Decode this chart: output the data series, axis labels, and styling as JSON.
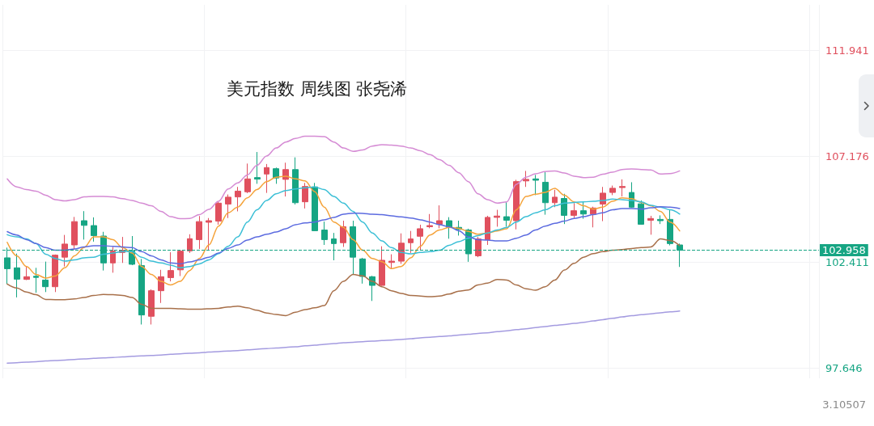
{
  "chart_data": {
    "type": "candlestick",
    "title": "美元指数 周线图 张尧浠",
    "categories": [
      null,
      null,
      null,
      null,
      null,
      null,
      null,
      null,
      null,
      null,
      null,
      null,
      null,
      null,
      null,
      null,
      null,
      null,
      null,
      null,
      null,
      null,
      null,
      null,
      null,
      null,
      null,
      null,
      null,
      null,
      null,
      null,
      null,
      null,
      null,
      null,
      null,
      null,
      null,
      null,
      null,
      null,
      null,
      null,
      null,
      null,
      null,
      null,
      null,
      null,
      null,
      null,
      null,
      null,
      null,
      null,
      null,
      null,
      null,
      null,
      null,
      null,
      null,
      null,
      null,
      null,
      null,
      null,
      null,
      null,
      null
    ],
    "ohlc": [
      [
        102.62,
        103.08,
        101.44,
        102.13
      ],
      [
        102.17,
        102.81,
        100.84,
        101.66
      ],
      [
        101.65,
        102.23,
        101.62,
        101.77
      ],
      [
        101.79,
        102.17,
        101.05,
        101.74
      ],
      [
        101.62,
        102.45,
        101.08,
        101.32
      ],
      [
        101.32,
        102.77,
        101.08,
        102.74
      ],
      [
        102.65,
        103.65,
        102.23,
        103.24
      ],
      [
        103.2,
        104.46,
        102.99,
        104.25
      ],
      [
        104.29,
        104.72,
        103.44,
        104.08
      ],
      [
        104.07,
        104.44,
        103.35,
        103.62
      ],
      [
        103.6,
        103.79,
        102.05,
        102.39
      ],
      [
        102.39,
        103.11,
        101.95,
        102.92
      ],
      [
        102.86,
        103.56,
        102.39,
        102.96
      ],
      [
        102.93,
        103.6,
        102.29,
        102.33
      ],
      [
        102.27,
        102.57,
        99.62,
        100.05
      ],
      [
        99.99,
        101.2,
        99.62,
        101.14
      ],
      [
        101.14,
        102.08,
        100.59,
        101.77
      ],
      [
        101.73,
        102.87,
        101.56,
        102.05
      ],
      [
        102.08,
        102.96,
        101.8,
        102.92
      ],
      [
        102.93,
        103.68,
        102.84,
        103.48
      ],
      [
        103.44,
        104.5,
        103.02,
        104.25
      ],
      [
        104.22,
        104.41,
        102.98,
        104.29
      ],
      [
        104.27,
        105.16,
        104.11,
        105.08
      ],
      [
        105.04,
        105.47,
        104.41,
        105.35
      ],
      [
        105.36,
        105.81,
        104.71,
        105.62
      ],
      [
        105.59,
        106.86,
        105.53,
        106.17
      ],
      [
        106.23,
        107.38,
        105.95,
        106.16
      ],
      [
        106.39,
        106.84,
        105.54,
        106.68
      ],
      [
        106.63,
        106.68,
        105.95,
        106.21
      ],
      [
        106.15,
        106.9,
        105.38,
        106.59
      ],
      [
        106.59,
        107.14,
        105.02,
        105.1
      ],
      [
        105.14,
        105.99,
        104.84,
        105.83
      ],
      [
        105.81,
        105.99,
        103.83,
        103.84
      ],
      [
        103.87,
        104.25,
        103.2,
        103.44
      ],
      [
        103.47,
        103.74,
        102.51,
        103.26
      ],
      [
        103.3,
        104.29,
        103.11,
        104.02
      ],
      [
        104.02,
        104.29,
        101.87,
        102.65
      ],
      [
        102.57,
        102.62,
        101.46,
        101.78
      ],
      [
        101.77,
        101.81,
        100.68,
        101.38
      ],
      [
        101.38,
        103.14,
        101.36,
        102.51
      ],
      [
        102.41,
        102.78,
        102.11,
        102.47
      ],
      [
        102.47,
        103.72,
        102.35,
        103.28
      ],
      [
        103.3,
        103.83,
        102.84,
        103.47
      ],
      [
        103.59,
        104.11,
        102.96,
        103.93
      ],
      [
        104.02,
        104.59,
        103.95,
        104.07
      ],
      [
        104.13,
        104.98,
        103.95,
        104.29
      ],
      [
        104.29,
        104.45,
        103.48,
        103.99
      ],
      [
        103.99,
        104.29,
        103.62,
        103.9
      ],
      [
        103.87,
        103.93,
        102.44,
        102.8
      ],
      [
        102.71,
        103.56,
        102.65,
        103.47
      ],
      [
        103.44,
        104.51,
        103.2,
        104.44
      ],
      [
        104.44,
        104.78,
        104.02,
        104.5
      ],
      [
        104.47,
        105.12,
        104.02,
        104.31
      ],
      [
        104.29,
        106.13,
        103.9,
        106.05
      ],
      [
        106.08,
        106.53,
        105.81,
        106.15
      ],
      [
        106.17,
        106.35,
        105.44,
        106.11
      ],
      [
        106.02,
        106.47,
        104.56,
        105.1
      ],
      [
        105.1,
        105.68,
        104.9,
        105.35
      ],
      [
        105.29,
        105.5,
        104.14,
        104.53
      ],
      [
        104.53,
        105.08,
        104.41,
        104.74
      ],
      [
        104.74,
        105.16,
        104.38,
        104.59
      ],
      [
        104.59,
        104.92,
        103.99,
        104.86
      ],
      [
        105.04,
        105.81,
        104.27,
        105.53
      ],
      [
        105.56,
        105.87,
        105.44,
        105.75
      ],
      [
        105.78,
        106.15,
        105.38,
        105.83
      ],
      [
        105.56,
        106.02,
        104.87,
        104.9
      ],
      [
        105.05,
        105.2,
        104.11,
        104.13
      ],
      [
        104.31,
        104.51,
        103.66,
        104.39
      ],
      [
        104.35,
        104.53,
        104.14,
        104.29
      ],
      [
        104.35,
        104.8,
        103.18,
        103.26
      ],
      [
        103.2,
        103.26,
        102.21,
        102.958
      ]
    ],
    "colors": [
      "#16a583",
      "#16a583",
      "#e0505e",
      "#16a583",
      "#16a583",
      "#e0505e",
      "#e0505e",
      "#e0505e",
      "#16a583",
      "#16a583",
      "#16a583",
      "#e0505e",
      "#e0505e",
      "#16a583",
      "#16a583",
      "#e0505e",
      "#e0505e",
      "#e0505e",
      "#e0505e",
      "#e0505e",
      "#e0505e",
      "#e0505e",
      "#e0505e",
      "#e0505e",
      "#e0505e",
      "#e0505e",
      "#16a583",
      "#e0505e",
      "#16a583",
      "#e0505e",
      "#16a583",
      "#e0505e",
      "#16a583",
      "#16a583",
      "#16a583",
      "#e0505e",
      "#16a583",
      "#16a583",
      "#16a583",
      "#e0505e",
      "#e0505e",
      "#e0505e",
      "#e0505e",
      "#e0505e",
      "#e0505e",
      "#e0505e",
      "#16a583",
      "#16a583",
      "#16a583",
      "#e0505e",
      "#e0505e",
      "#e0505e",
      "#16a583",
      "#e0505e",
      "#e0505e",
      "#16a583",
      "#16a583",
      "#e0505e",
      "#16a583",
      "#e0505e",
      "#16a583",
      "#e0505e",
      "#e0505e",
      "#e0505e",
      "#e0505e",
      "#16a583",
      "#16a583",
      "#e0505e",
      "#16a583",
      "#16a583",
      "#16a583"
    ],
    "series": [
      {
        "type": "line",
        "color": "#f5a33b",
        "values": [
          103.32,
          102.71,
          102.23,
          101.87,
          101.71,
          101.8,
          102.17,
          102.71,
          103.08,
          103.56,
          103.56,
          103.44,
          103.08,
          102.84,
          102.23,
          101.87,
          101.56,
          101.4,
          101.56,
          102.05,
          102.59,
          103.2,
          104.05,
          104.65,
          104.9,
          105.32,
          105.69,
          106.05,
          106.25,
          106.29,
          106.17,
          106.08,
          105.6,
          104.9,
          104.23,
          103.99,
          103.44,
          102.96,
          102.59,
          102.45,
          102.14,
          102.23,
          102.62,
          103.14,
          103.65,
          103.87,
          103.99,
          103.95,
          103.81,
          103.68,
          103.74,
          103.83,
          103.93,
          104.78,
          105.38,
          105.48,
          105.56,
          105.75,
          105.44,
          105.14,
          104.96,
          104.81,
          104.9,
          105.16,
          105.32,
          105.28,
          105.11,
          104.96,
          104.71,
          104.23,
          103.83
        ]
      },
      {
        "type": "line",
        "color": "#3bbfd6",
        "values": [
          103.66,
          103.56,
          103.47,
          103.26,
          102.78,
          102.59,
          102.47,
          102.53,
          102.62,
          102.65,
          102.78,
          102.84,
          102.9,
          102.9,
          102.65,
          102.47,
          102.39,
          102.29,
          102.17,
          102.23,
          102.35,
          102.53,
          102.81,
          103.14,
          103.56,
          104.23,
          104.78,
          105.2,
          105.5,
          105.65,
          105.72,
          105.77,
          105.81,
          105.69,
          105.38,
          105.08,
          104.71,
          104.23,
          103.74,
          103.38,
          103.08,
          102.86,
          102.8,
          102.86,
          102.9,
          102.96,
          103.18,
          103.35,
          103.5,
          103.62,
          103.74,
          103.87,
          103.99,
          104.23,
          104.47,
          104.65,
          104.78,
          104.96,
          105.08,
          105.11,
          105.14,
          105.16,
          105.2,
          105.26,
          105.24,
          105.2,
          105.14,
          104.98,
          104.9,
          104.78,
          104.59
        ]
      },
      {
        "type": "line",
        "color": "#5c6be0",
        "values": [
          103.8,
          103.65,
          103.44,
          103.26,
          103.08,
          102.96,
          102.96,
          103.02,
          103.11,
          103.16,
          103.16,
          103.14,
          103.11,
          103.08,
          102.9,
          102.71,
          102.53,
          102.39,
          102.35,
          102.44,
          102.53,
          102.65,
          102.84,
          103.05,
          103.2,
          103.42,
          103.56,
          103.68,
          103.78,
          103.93,
          104.11,
          104.19,
          104.23,
          104.33,
          104.44,
          104.58,
          104.63,
          104.62,
          104.58,
          104.56,
          104.51,
          104.46,
          104.41,
          104.33,
          104.23,
          104.11,
          104.02,
          103.84,
          103.56,
          103.44,
          103.42,
          103.38,
          103.38,
          103.5,
          103.65,
          103.87,
          104.05,
          104.17,
          104.27,
          104.39,
          104.47,
          104.56,
          104.65,
          104.78,
          104.84,
          104.84,
          104.81,
          104.87,
          104.92,
          104.9,
          104.84
        ]
      },
      {
        "type": "line",
        "color": "#d58bd4",
        "values": [
          106.17,
          105.81,
          105.69,
          105.62,
          105.44,
          105.24,
          105.18,
          105.24,
          105.36,
          105.38,
          105.38,
          105.36,
          105.28,
          105.2,
          105.08,
          104.96,
          104.71,
          104.47,
          104.38,
          104.39,
          104.56,
          104.8,
          105.16,
          105.72,
          105.99,
          106.35,
          106.78,
          107.2,
          107.56,
          107.83,
          107.99,
          108.09,
          108.09,
          108.07,
          107.83,
          107.56,
          107.41,
          107.47,
          107.65,
          107.71,
          107.69,
          107.65,
          107.56,
          107.44,
          107.26,
          107.04,
          106.78,
          106.45,
          106.05,
          105.5,
          105.24,
          105.08,
          105.14,
          105.93,
          106.25,
          106.4,
          106.5,
          106.53,
          106.44,
          106.29,
          106.23,
          106.25,
          106.38,
          106.47,
          106.59,
          106.62,
          106.59,
          106.57,
          106.39,
          106.41,
          106.53
        ]
      },
      {
        "type": "line",
        "color": "#a8704a",
        "values": [
          101.44,
          101.26,
          101.08,
          100.96,
          100.75,
          100.74,
          100.74,
          100.77,
          100.84,
          100.93,
          100.97,
          100.96,
          100.93,
          100.84,
          100.53,
          100.35,
          100.35,
          100.35,
          100.33,
          100.31,
          100.31,
          100.33,
          100.35,
          100.41,
          100.45,
          100.37,
          100.26,
          100.14,
          100.07,
          100.02,
          100.17,
          100.29,
          100.37,
          100.47,
          101.14,
          101.56,
          101.87,
          101.81,
          101.56,
          101.32,
          101.14,
          101.02,
          100.93,
          100.9,
          100.87,
          100.9,
          100.99,
          101.12,
          101.17,
          101.4,
          101.48,
          101.65,
          101.62,
          101.4,
          101.23,
          101.16,
          101.32,
          101.62,
          102.07,
          102.37,
          102.65,
          102.81,
          102.9,
          102.96,
          102.99,
          103.04,
          103.08,
          103.11,
          103.47,
          103.4,
          103.17
        ]
      },
      {
        "type": "line",
        "color": "#a49be0",
        "values": [
          97.88,
          97.9,
          97.93,
          97.95,
          97.98,
          98.0,
          98.02,
          98.05,
          98.07,
          98.1,
          98.12,
          98.14,
          98.16,
          98.19,
          98.21,
          98.23,
          98.25,
          98.28,
          98.3,
          98.33,
          98.35,
          98.38,
          98.4,
          98.43,
          98.45,
          98.48,
          98.51,
          98.54,
          98.56,
          98.59,
          98.62,
          98.66,
          98.69,
          98.73,
          98.76,
          98.8,
          98.82,
          98.85,
          98.87,
          98.9,
          98.92,
          98.95,
          98.98,
          99.02,
          99.05,
          99.08,
          99.11,
          99.15,
          99.18,
          99.22,
          99.25,
          99.3,
          99.34,
          99.39,
          99.43,
          99.48,
          99.53,
          99.58,
          99.62,
          99.67,
          99.72,
          99.78,
          99.84,
          99.9,
          99.96,
          100.02,
          100.06,
          100.1,
          100.15,
          100.19,
          100.23
        ]
      }
    ],
    "ylim": [
      97.2,
      114.0
    ],
    "yticks": [
      97.646,
      102.411,
      107.176,
      111.941
    ],
    "tick_labels": "y",
    "grid": true,
    "ref_lines": [
      {
        "axis": "y",
        "value": 102.958,
        "label": "102.958",
        "color": "#16a583",
        "line_style": "dashed"
      }
    ],
    "annotations": [
      "3.10507"
    ]
  }
}
